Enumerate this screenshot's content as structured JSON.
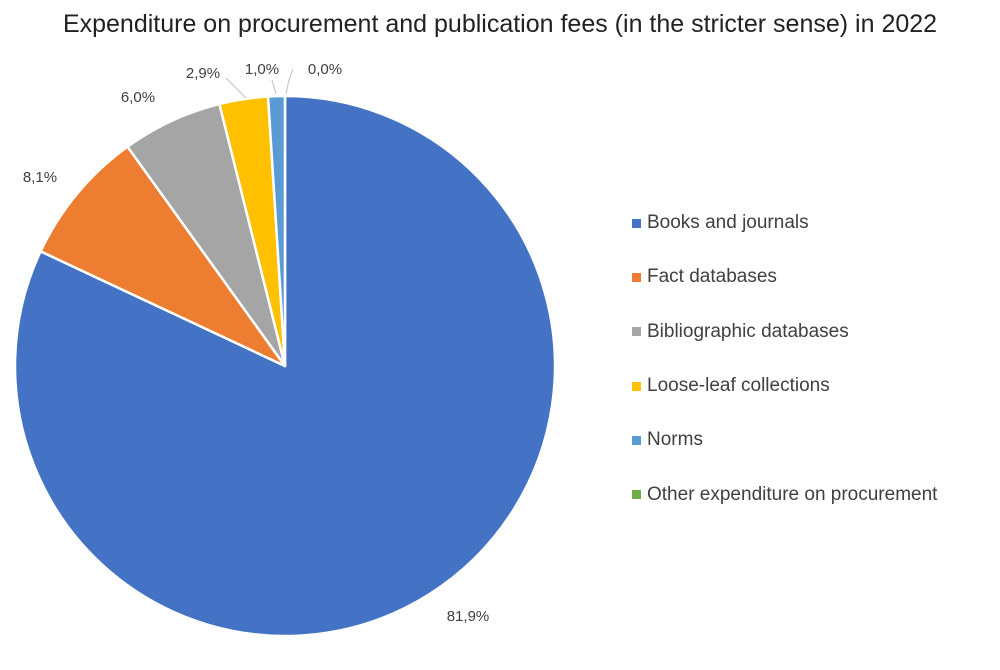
{
  "chart_data": {
    "type": "pie",
    "title": "Expenditure on procurement and publication fees (in the stricter sense) in 2022",
    "slices": [
      {
        "name": "Books and journals",
        "value": 81.9,
        "label": "81,9%",
        "color": "#4472C4"
      },
      {
        "name": "Fact databases",
        "value": 8.1,
        "label": "8,1%",
        "color": "#ED7D31"
      },
      {
        "name": "Bibliographic databases",
        "value": 6.0,
        "label": "6,0%",
        "color": "#A5A5A5"
      },
      {
        "name": "Loose-leaf collections",
        "value": 2.9,
        "label": "2,9%",
        "color": "#FFC000"
      },
      {
        "name": "Norms",
        "value": 1.0,
        "label": "1,0%",
        "color": "#5B9BD5"
      },
      {
        "name": "Other expenditure on procurement",
        "value": 0.0,
        "label": "0,0%",
        "color": "#70AD47"
      }
    ],
    "legend_position": "right",
    "start_angle": "12 o'clock",
    "direction": "clockwise"
  }
}
